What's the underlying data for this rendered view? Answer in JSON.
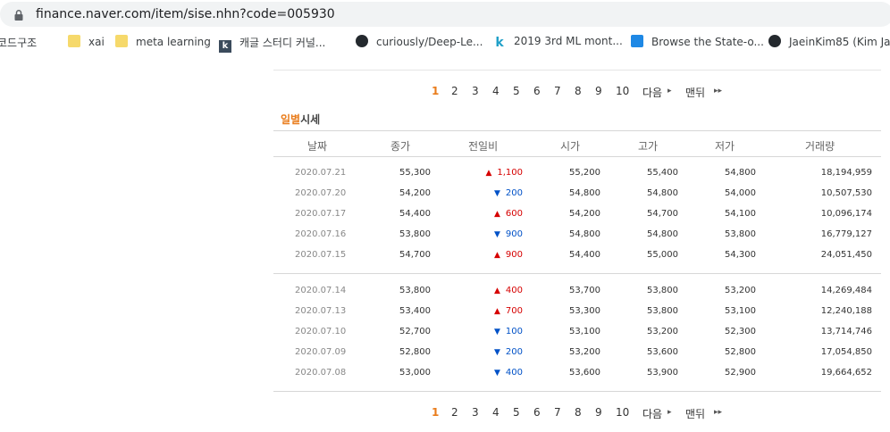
{
  "browser": {
    "url": "finance.naver.com/item/sise.nhn?code=005930",
    "bookmarks": [
      {
        "label": "코드구조",
        "icon": "partial-icon"
      },
      {
        "label": "xai",
        "icon": "folder-icon"
      },
      {
        "label": "meta learning",
        "icon": "folder-icon"
      },
      {
        "label": "캐글 스터디 커널...",
        "icon": "kaggle-k-icon"
      },
      {
        "label": "curiously/Deep-Le...",
        "icon": "github-icon"
      },
      {
        "label": "2019 3rd ML mont...",
        "icon": "k-icon"
      },
      {
        "label": "Browse the State-o...",
        "icon": "paperswithcode-icon"
      },
      {
        "label": "JaeinKim85 (Kim Ja...",
        "icon": "github-icon"
      }
    ]
  },
  "pager": {
    "current": "1",
    "pages": [
      "2",
      "3",
      "4",
      "5",
      "6",
      "7",
      "8",
      "9",
      "10"
    ],
    "next_label": "다음",
    "last_label": "맨뒤"
  },
  "section": {
    "title_accent": "일별",
    "title_rest": "시세"
  },
  "table": {
    "headers": [
      "날짜",
      "종가",
      "전일비",
      "시가",
      "고가",
      "저가",
      "거래량"
    ],
    "groups": [
      [
        {
          "date": "2020.07.21",
          "close": "55,300",
          "dir": "up",
          "diff": "1,100",
          "open": "55,200",
          "high": "55,400",
          "low": "54,800",
          "volume": "18,194,959"
        },
        {
          "date": "2020.07.20",
          "close": "54,200",
          "dir": "down",
          "diff": "200",
          "open": "54,800",
          "high": "54,800",
          "low": "54,000",
          "volume": "10,507,530"
        },
        {
          "date": "2020.07.17",
          "close": "54,400",
          "dir": "up",
          "diff": "600",
          "open": "54,200",
          "high": "54,700",
          "low": "54,100",
          "volume": "10,096,174"
        },
        {
          "date": "2020.07.16",
          "close": "53,800",
          "dir": "down",
          "diff": "900",
          "open": "54,800",
          "high": "54,800",
          "low": "53,800",
          "volume": "16,779,127"
        },
        {
          "date": "2020.07.15",
          "close": "54,700",
          "dir": "up",
          "diff": "900",
          "open": "54,400",
          "high": "55,000",
          "low": "54,300",
          "volume": "24,051,450"
        }
      ],
      [
        {
          "date": "2020.07.14",
          "close": "53,800",
          "dir": "up",
          "diff": "400",
          "open": "53,700",
          "high": "53,800",
          "low": "53,200",
          "volume": "14,269,484"
        },
        {
          "date": "2020.07.13",
          "close": "53,400",
          "dir": "up",
          "diff": "700",
          "open": "53,300",
          "high": "53,800",
          "low": "53,100",
          "volume": "12,240,188"
        },
        {
          "date": "2020.07.10",
          "close": "52,700",
          "dir": "down",
          "diff": "100",
          "open": "53,100",
          "high": "53,200",
          "low": "52,300",
          "volume": "13,714,746"
        },
        {
          "date": "2020.07.09",
          "close": "52,800",
          "dir": "down",
          "diff": "200",
          "open": "53,200",
          "high": "53,600",
          "low": "52,800",
          "volume": "17,054,850"
        },
        {
          "date": "2020.07.08",
          "close": "53,000",
          "dir": "down",
          "diff": "400",
          "open": "53,600",
          "high": "53,900",
          "low": "52,900",
          "volume": "19,664,652"
        }
      ]
    ]
  },
  "colors": {
    "up": "#d60000",
    "down": "#0051c7",
    "accent": "#e97c1b"
  }
}
